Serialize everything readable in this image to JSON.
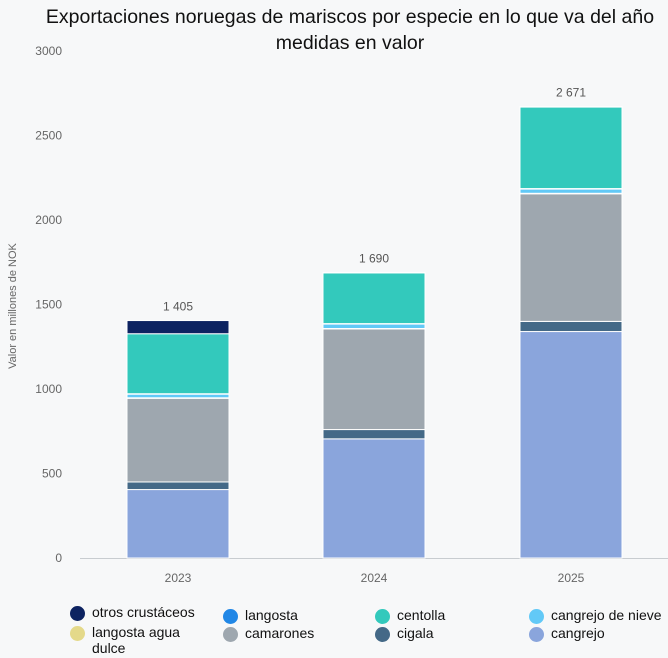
{
  "chart_data": {
    "type": "bar",
    "stacked": true,
    "title": "Exportaciones noruegas de mariscos por especie en lo que va del año medidas en valor",
    "ylabel": "Valor en millones de NOK",
    "xlabel": "",
    "ylim": [
      0,
      3000
    ],
    "yticks": [
      "0",
      "500",
      "1000",
      "1500",
      "2000",
      "2500",
      "3000"
    ],
    "grid": false,
    "legend_position": "bottom",
    "categories": [
      "2023",
      "2024",
      "2025"
    ],
    "totals": [
      "1 405",
      "1 690",
      "2 671"
    ],
    "series": [
      {
        "name": "cangrejo",
        "color": "#8aa5dc",
        "values": [
          405,
          705,
          1340
        ]
      },
      {
        "name": "cigala",
        "color": "#446987",
        "values": [
          45,
          55,
          60
        ]
      },
      {
        "name": "camarones",
        "color": "#9ea7af",
        "values": [
          495,
          595,
          755
        ]
      },
      {
        "name": "langosta agua dulce",
        "color": "#e4d98a",
        "values": [
          3,
          3,
          3
        ]
      },
      {
        "name": "cangrejo de nieve",
        "color": "#62c9f7",
        "values": [
          22,
          27,
          25
        ]
      },
      {
        "name": "langosta",
        "color": "#2187e6",
        "values": [
          2,
          2,
          3
        ]
      },
      {
        "name": "centolla",
        "color": "#33c9bc",
        "values": [
          355,
          300,
          483
        ]
      },
      {
        "name": "otros crustáceos",
        "color": "#0d2361",
        "values": [
          78,
          3,
          2
        ]
      }
    ]
  },
  "legend": [
    {
      "label": "otros crustáceos",
      "color": "#0d2361"
    },
    {
      "label": "langosta",
      "color": "#2187e6"
    },
    {
      "label": "centolla",
      "color": "#33c9bc"
    },
    {
      "label": "cangrejo de nieve",
      "color": "#62c9f7"
    },
    {
      "label": "langosta agua dulce",
      "color": "#e4d98a"
    },
    {
      "label": "camarones",
      "color": "#9ea7af"
    },
    {
      "label": "cigala",
      "color": "#446987"
    },
    {
      "label": "cangrejo",
      "color": "#8aa5dc"
    }
  ]
}
